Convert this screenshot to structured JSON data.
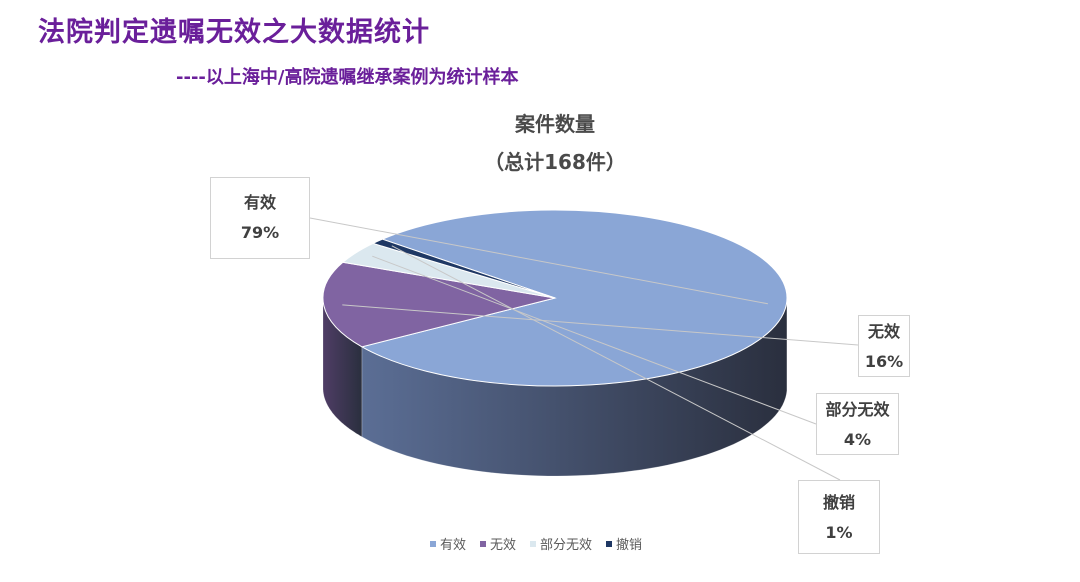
{
  "page": {
    "title": "法院判定遗嘱无效之大数据统计",
    "subtitle": "----以上海中/高院遗嘱继承案例为统计样本"
  },
  "chart_data": {
    "type": "pie",
    "title": "案件数量",
    "subtitle": "（总计168件）",
    "categories": [
      "有效",
      "无效",
      "部分无效",
      "撤销"
    ],
    "values": [
      79,
      16,
      4,
      1
    ],
    "labels": [
      "79%",
      "16%",
      "4%",
      "1%"
    ],
    "colors": [
      "#8aa6d6",
      "#8064a2",
      "#dbe8ef",
      "#1f3864"
    ],
    "side_colors": [
      "#5b6e95",
      "#4f3d66",
      "#7d8a8f",
      "#101e38"
    ],
    "legend_position": "bottom",
    "three_d": true
  }
}
